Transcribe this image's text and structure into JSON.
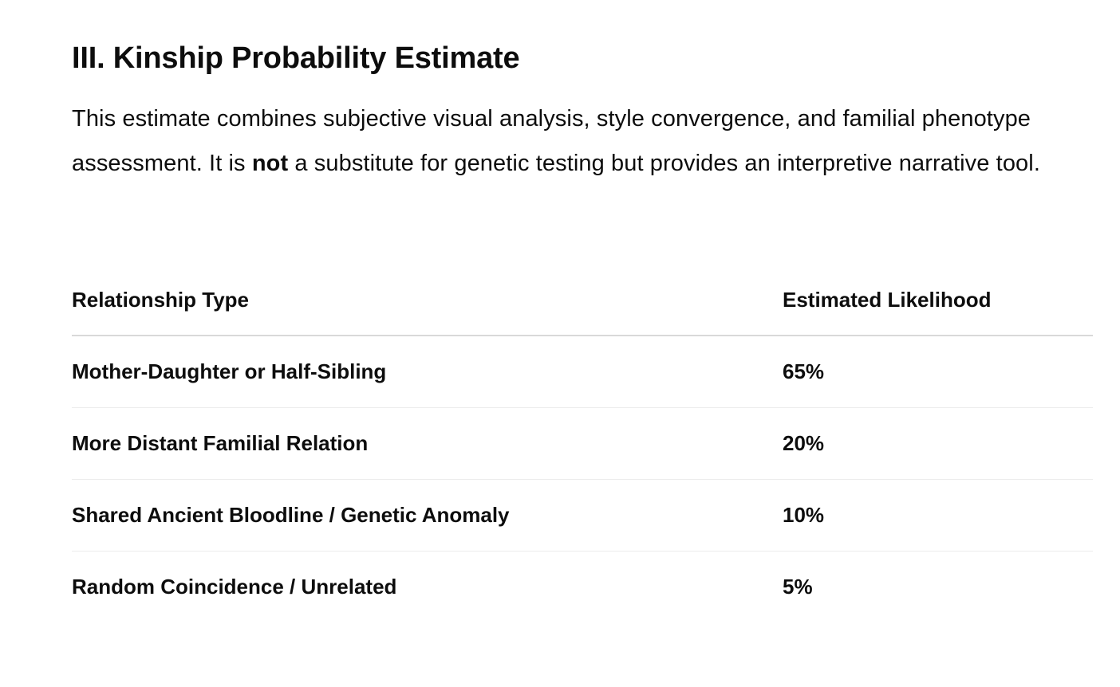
{
  "section": {
    "title": "III. Kinship Probability Estimate",
    "intro_before": "This estimate combines subjective visual analysis, style convergence, and familial phenotype assessment. It is ",
    "intro_emphasis": "not",
    "intro_after": " a substitute for genetic testing but provides an interpretive narrative tool."
  },
  "table": {
    "headers": {
      "relationship": "Relationship Type",
      "likelihood": "Estimated Likelihood"
    },
    "rows": [
      {
        "relationship": "Mother-Daughter or Half-Sibling",
        "likelihood": "65%"
      },
      {
        "relationship": "More Distant Familial Relation",
        "likelihood": "20%"
      },
      {
        "relationship": "Shared Ancient Bloodline / Genetic Anomaly",
        "likelihood": "10%"
      },
      {
        "relationship": "Random Coincidence / Unrelated",
        "likelihood": "5%"
      }
    ]
  }
}
